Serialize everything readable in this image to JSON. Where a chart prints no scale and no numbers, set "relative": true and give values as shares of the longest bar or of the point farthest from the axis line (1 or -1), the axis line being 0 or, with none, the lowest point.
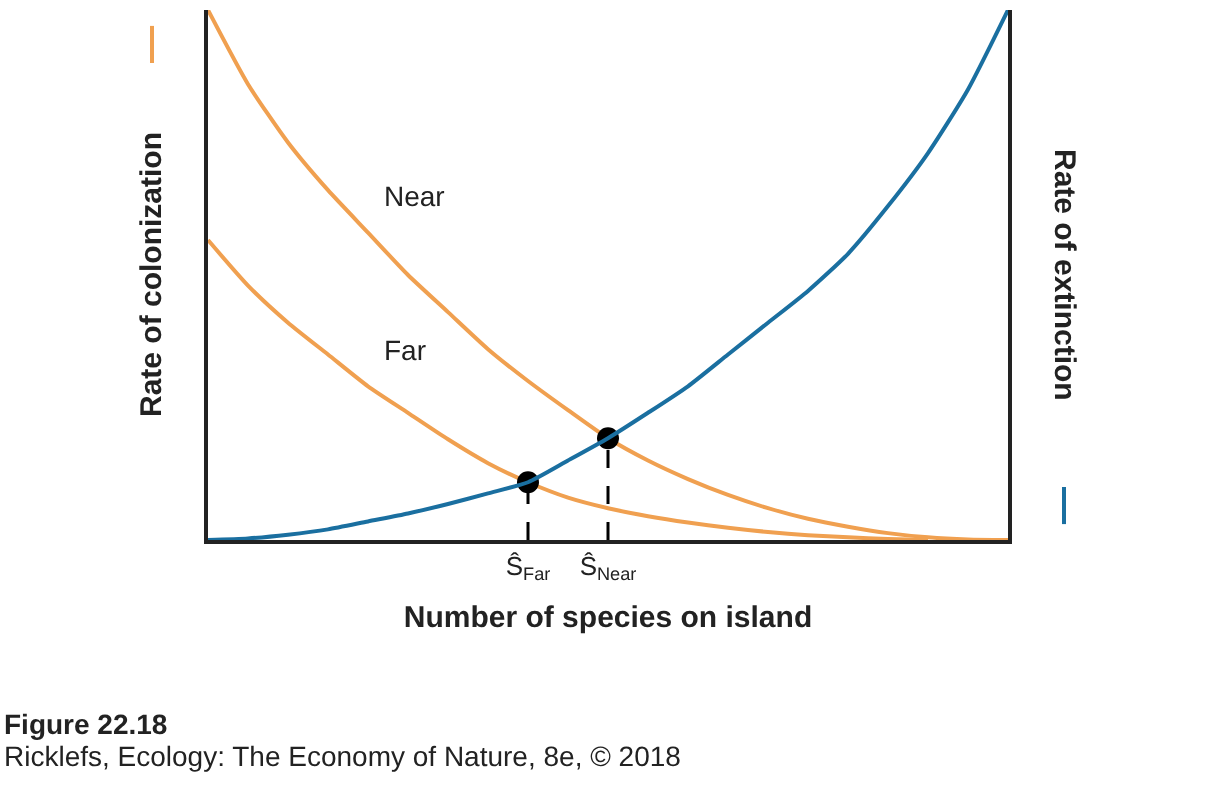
{
  "chart_data": {
    "type": "line",
    "relative": true,
    "xlabel": "Number of species on island",
    "ylabel": "Rate of colonization",
    "y2label": "Rate of extinction",
    "categories": [
      null,
      null,
      null,
      null,
      null,
      null,
      null,
      null,
      "Ŝ$_{Far}$",
      null,
      "Ŝ$_{Near}$",
      null,
      null,
      null,
      null,
      null,
      null,
      null,
      null,
      null,
      null
    ],
    "tick_labels": "x",
    "legend": false,
    "marker": "none",
    "line_style": "solid",
    "series": [
      {
        "name": "Near",
        "color": "#f0a050",
        "values": [
          1,
          0.86,
          0.75,
          0.66,
          0.58,
          0.5,
          0.43,
          0.36,
          0.3,
          0.245,
          0.192,
          0.15,
          0.115,
          0.085,
          0.06,
          0.04,
          0.025,
          0.013,
          0.005,
          0.001,
          0
        ]
      },
      {
        "name": "Far",
        "color": "#f0a050",
        "values": [
          0.566,
          0.48,
          0.41,
          0.35,
          0.29,
          0.24,
          0.19,
          0.145,
          0.109,
          0.08,
          0.06,
          0.045,
          0.033,
          0.023,
          0.015,
          0.009,
          0.005,
          0.002,
          0,
          null,
          null
        ]
      },
      {
        "color": "#1a6fa0",
        "axis": "y2",
        "values": [
          0,
          0.003,
          0.01,
          0.02,
          0.035,
          0.05,
          0.068,
          0.088,
          0.109,
          0.15,
          0.192,
          0.24,
          0.29,
          0.35,
          0.41,
          0.47,
          0.54,
          0.63,
          0.73,
          0.85,
          1
        ]
      },
      {
        "type": "lollipop",
        "color": "#000000",
        "marker": "circle",
        "line_style": "dashed",
        "values": [
          null,
          null,
          null,
          null,
          null,
          null,
          null,
          null,
          0.109,
          null,
          0.192,
          null,
          null,
          null,
          null,
          null,
          null,
          null,
          null,
          null,
          null
        ]
      }
    ],
    "annotations": [
      "Figure 22.18",
      "Ricklefs, Ecology: The Economy of Nature, 8e, © 2018"
    ]
  }
}
